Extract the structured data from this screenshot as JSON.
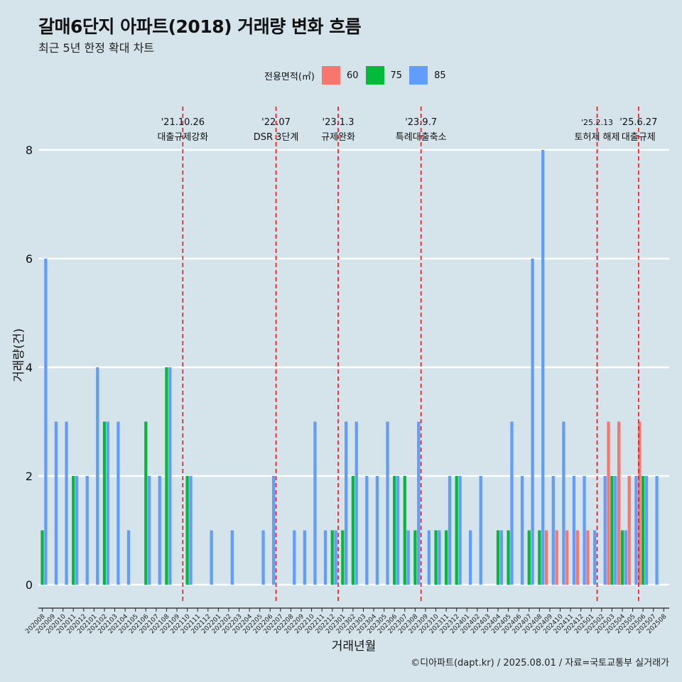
{
  "header": {
    "title": "갈매6단지 아파트(2018) 거래량 변화 흐름",
    "subtitle": "최근 5년 한정 확대 차트"
  },
  "legend": {
    "title": "전용면적(㎡)",
    "items": [
      {
        "label": "60",
        "color": "#f8766d"
      },
      {
        "label": "75",
        "color": "#00ba38"
      },
      {
        "label": "85",
        "color": "#619cff"
      }
    ]
  },
  "caption": "©디아파트(dapt.kr) / 2025.08.01 / 자료=국토교통부 실거래가",
  "chart_data": {
    "type": "bar",
    "xlabel": "거래년월",
    "ylabel": "거래량(건)",
    "ylim": [
      0,
      8
    ],
    "yticks": [
      0,
      2,
      4,
      6,
      8
    ],
    "grid": true,
    "legend_position": "top",
    "categories": [
      "202008",
      "202009",
      "202010",
      "202011",
      "202012",
      "202101",
      "202102",
      "202103",
      "202104",
      "202105",
      "202106",
      "202107",
      "202108",
      "202109",
      "202110",
      "202111",
      "202112",
      "202201",
      "202202",
      "202203",
      "202204",
      "202205",
      "202206",
      "202207",
      "202208",
      "202209",
      "202210",
      "202211",
      "202212",
      "202301",
      "202302",
      "202303",
      "202304",
      "202305",
      "202306",
      "202307",
      "202308",
      "202309",
      "202310",
      "202311",
      "202312",
      "202401",
      "202402",
      "202403",
      "202404",
      "202405",
      "202406",
      "202407",
      "202408",
      "202409",
      "202410",
      "202411",
      "202412",
      "202501",
      "202502",
      "202503",
      "202504",
      "202505",
      "202506",
      "202507",
      "202508"
    ],
    "series": [
      {
        "name": "60",
        "color": "#f8766d",
        "values": [
          0,
          0,
          0,
          0,
          0,
          0,
          0,
          0,
          0,
          0,
          0,
          0,
          0,
          0,
          0,
          0,
          0,
          0,
          0,
          0,
          0,
          0,
          0,
          0,
          0,
          0,
          0,
          0,
          0,
          0,
          0,
          0,
          0,
          0,
          0,
          0,
          0,
          0,
          0,
          0,
          0,
          0,
          0,
          0,
          0,
          0,
          0,
          0,
          0,
          1,
          1,
          1,
          1,
          1,
          0,
          3,
          3,
          2,
          3,
          0,
          0
        ]
      },
      {
        "name": "75",
        "color": "#00ba38",
        "values": [
          1,
          0,
          0,
          2,
          0,
          0,
          3,
          0,
          0,
          0,
          3,
          0,
          4,
          0,
          2,
          0,
          0,
          0,
          0,
          0,
          0,
          0,
          0,
          0,
          0,
          0,
          0,
          0,
          1,
          1,
          2,
          0,
          0,
          0,
          2,
          2,
          1,
          0,
          1,
          1,
          2,
          0,
          0,
          0,
          1,
          1,
          0,
          1,
          1,
          0,
          0,
          0,
          0,
          0,
          0,
          2,
          1,
          0,
          2,
          0,
          0
        ]
      },
      {
        "name": "85",
        "color": "#619cff",
        "values": [
          6,
          3,
          3,
          2,
          2,
          4,
          3,
          3,
          1,
          0,
          2,
          2,
          4,
          0,
          2,
          0,
          1,
          0,
          1,
          0,
          0,
          1,
          2,
          0,
          1,
          1,
          3,
          1,
          1,
          3,
          3,
          2,
          2,
          3,
          2,
          1,
          3,
          1,
          1,
          2,
          2,
          1,
          2,
          0,
          1,
          3,
          2,
          6,
          8,
          2,
          3,
          2,
          2,
          1,
          2,
          2,
          1,
          2,
          2,
          2,
          0
        ]
      }
    ],
    "events": [
      {
        "date": "'21.10.26",
        "label": "대출규제강화",
        "at": "202110"
      },
      {
        "date": "'22.07",
        "label": "DSR 3단계",
        "at": "202207"
      },
      {
        "date": "'23.1.3",
        "label": "규제완화",
        "at": "202301"
      },
      {
        "date": "'23.9.7",
        "label": "특례대출축소",
        "at": "202309"
      },
      {
        "date": "'25.2.13",
        "label": "토허제 해제",
        "at": "202502"
      },
      {
        "date": "'25.6.27",
        "label": "대출규제",
        "at": "202506"
      }
    ]
  }
}
